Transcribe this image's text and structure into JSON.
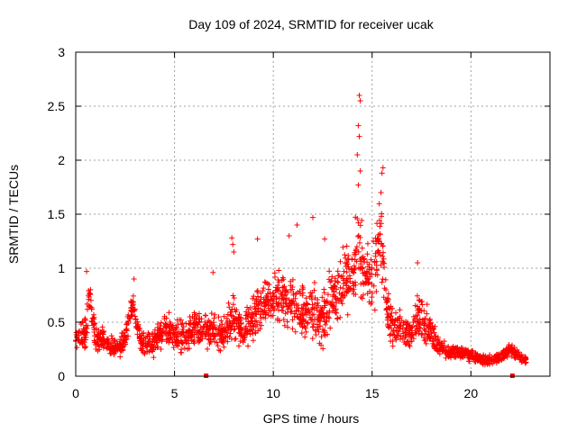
{
  "chart_data": {
    "type": "scatter",
    "title": "Day 109 of 2024, SRMTID for receiver ucak",
    "xlabel": "GPS time / hours",
    "ylabel": "SRMTID / TECUs",
    "xlim": [
      0,
      24
    ],
    "ylim": [
      0,
      3
    ],
    "xticks": [
      0,
      5,
      10,
      15,
      20
    ],
    "xtick_labels": [
      "0",
      "5",
      "10",
      "15",
      "20"
    ],
    "yticks": [
      0,
      0.5,
      1,
      1.5,
      2,
      2.5,
      3
    ],
    "ytick_labels": [
      "0",
      "0.5",
      "1",
      "1.5",
      "2",
      "2.5",
      "3"
    ],
    "grid": true,
    "marker": "+",
    "color": "#ff0000",
    "series": [
      {
        "name": "SRMTID",
        "envelope_note": "dense scatter; representative trend points (hour, median TECU, spread)",
        "trend": [
          [
            0.0,
            0.35,
            0.15
          ],
          [
            0.5,
            0.4,
            0.25
          ],
          [
            0.7,
            0.75,
            0.2
          ],
          [
            1.0,
            0.35,
            0.2
          ],
          [
            1.5,
            0.3,
            0.15
          ],
          [
            2.0,
            0.25,
            0.12
          ],
          [
            2.5,
            0.35,
            0.2
          ],
          [
            2.9,
            0.7,
            0.15
          ],
          [
            3.3,
            0.3,
            0.15
          ],
          [
            4.0,
            0.3,
            0.15
          ],
          [
            4.5,
            0.45,
            0.2
          ],
          [
            5.0,
            0.4,
            0.2
          ],
          [
            5.5,
            0.35,
            0.2
          ],
          [
            6.0,
            0.45,
            0.2
          ],
          [
            6.5,
            0.45,
            0.2
          ],
          [
            7.0,
            0.4,
            0.25
          ],
          [
            7.5,
            0.4,
            0.2
          ],
          [
            8.0,
            0.55,
            0.3
          ],
          [
            8.5,
            0.4,
            0.2
          ],
          [
            9.0,
            0.55,
            0.3
          ],
          [
            9.5,
            0.7,
            0.3
          ],
          [
            10.0,
            0.7,
            0.3
          ],
          [
            10.5,
            0.75,
            0.35
          ],
          [
            11.0,
            0.65,
            0.3
          ],
          [
            11.5,
            0.6,
            0.3
          ],
          [
            12.0,
            0.6,
            0.35
          ],
          [
            12.5,
            0.55,
            0.35
          ],
          [
            13.0,
            0.75,
            0.4
          ],
          [
            13.5,
            0.85,
            0.4
          ],
          [
            14.0,
            0.95,
            0.45
          ],
          [
            14.3,
            1.2,
            0.6
          ],
          [
            14.6,
            0.9,
            0.45
          ],
          [
            15.0,
            0.9,
            0.45
          ],
          [
            15.4,
            1.3,
            0.5
          ],
          [
            15.8,
            0.55,
            0.3
          ],
          [
            16.5,
            0.4,
            0.2
          ],
          [
            17.0,
            0.4,
            0.25
          ],
          [
            17.4,
            0.6,
            0.3
          ],
          [
            18.0,
            0.4,
            0.2
          ],
          [
            18.5,
            0.25,
            0.1
          ],
          [
            19.0,
            0.22,
            0.08
          ],
          [
            19.5,
            0.22,
            0.08
          ],
          [
            20.0,
            0.2,
            0.08
          ],
          [
            20.5,
            0.15,
            0.06
          ],
          [
            21.0,
            0.15,
            0.06
          ],
          [
            21.5,
            0.18,
            0.06
          ],
          [
            22.0,
            0.25,
            0.1
          ],
          [
            22.5,
            0.18,
            0.06
          ],
          [
            22.8,
            0.15,
            0.05
          ]
        ],
        "outliers": [
          [
            14.35,
            2.6
          ],
          [
            14.4,
            2.55
          ],
          [
            14.3,
            2.32
          ],
          [
            14.35,
            2.22
          ],
          [
            14.25,
            2.05
          ],
          [
            14.4,
            1.9
          ],
          [
            14.3,
            1.77
          ],
          [
            15.55,
            1.93
          ],
          [
            15.5,
            1.88
          ],
          [
            15.45,
            1.7
          ],
          [
            12.0,
            1.47
          ],
          [
            12.6,
            1.27
          ],
          [
            11.2,
            1.4
          ],
          [
            7.9,
            1.28
          ],
          [
            7.95,
            1.22
          ],
          [
            8.0,
            1.15
          ],
          [
            9.2,
            1.27
          ],
          [
            10.8,
            1.3
          ],
          [
            17.3,
            1.05
          ],
          [
            0.55,
            0.97
          ],
          [
            2.95,
            0.9
          ],
          [
            6.95,
            0.96
          ]
        ]
      }
    ],
    "axis_markers": [
      6.6,
      22.1
    ]
  }
}
